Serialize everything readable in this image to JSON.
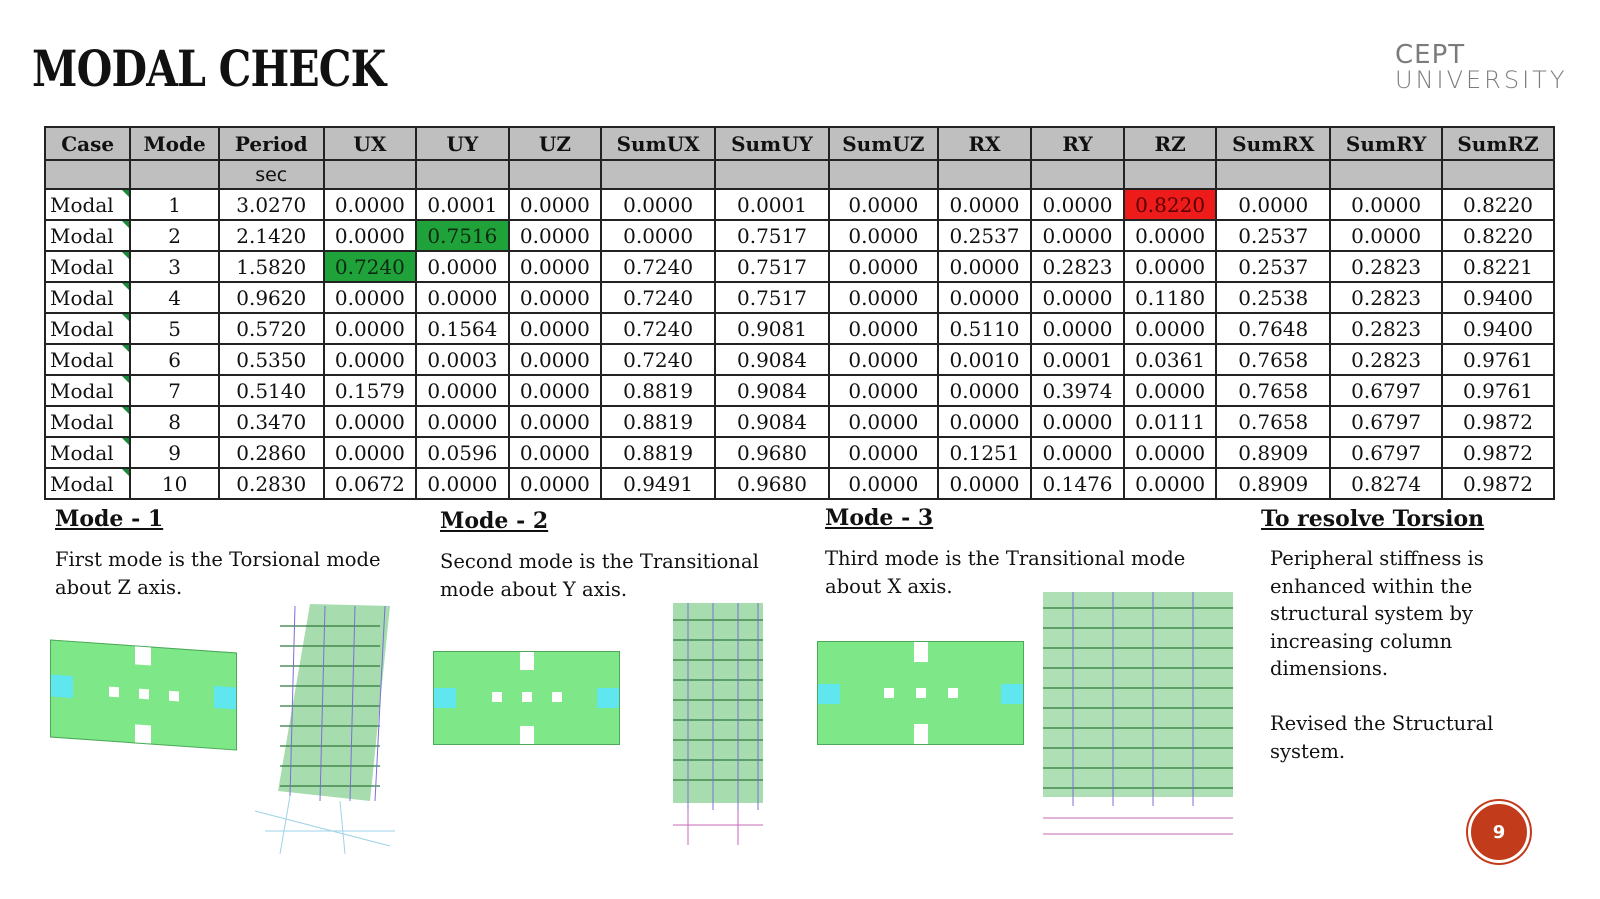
{
  "title": "MODAL CHECK",
  "logo": {
    "line1": "CEPT",
    "line2": "UNIVERSITY"
  },
  "table": {
    "headers": [
      "Case",
      "Mode",
      "Period",
      "UX",
      "UY",
      "UZ",
      "SumUX",
      "SumUY",
      "SumUZ",
      "RX",
      "RY",
      "RZ",
      "SumRX",
      "SumRY",
      "SumRZ"
    ],
    "units": [
      "",
      "",
      "sec",
      "",
      "",
      "",
      "",
      "",
      "",
      "",
      "",
      "",
      "",
      "",
      ""
    ],
    "rows": [
      [
        "Modal",
        "1",
        "3.0270",
        "0.0000",
        "0.0001",
        "0.0000",
        "0.0000",
        "0.0001",
        "0.0000",
        "0.0000",
        "0.0000",
        "0.8220",
        "0.0000",
        "0.0000",
        "0.8220"
      ],
      [
        "Modal",
        "2",
        "2.1420",
        "0.0000",
        "0.7516",
        "0.0000",
        "0.0000",
        "0.7517",
        "0.0000",
        "0.2537",
        "0.0000",
        "0.0000",
        "0.2537",
        "0.0000",
        "0.8220"
      ],
      [
        "Modal",
        "3",
        "1.5820",
        "0.7240",
        "0.0000",
        "0.0000",
        "0.7240",
        "0.7517",
        "0.0000",
        "0.0000",
        "0.2823",
        "0.0000",
        "0.2537",
        "0.2823",
        "0.8221"
      ],
      [
        "Modal",
        "4",
        "0.9620",
        "0.0000",
        "0.0000",
        "0.0000",
        "0.7240",
        "0.7517",
        "0.0000",
        "0.0000",
        "0.0000",
        "0.1180",
        "0.2538",
        "0.2823",
        "0.9400"
      ],
      [
        "Modal",
        "5",
        "0.5720",
        "0.0000",
        "0.1564",
        "0.0000",
        "0.7240",
        "0.9081",
        "0.0000",
        "0.5110",
        "0.0000",
        "0.0000",
        "0.7648",
        "0.2823",
        "0.9400"
      ],
      [
        "Modal",
        "6",
        "0.5350",
        "0.0000",
        "0.0003",
        "0.0000",
        "0.7240",
        "0.9084",
        "0.0000",
        "0.0010",
        "0.0001",
        "0.0361",
        "0.7658",
        "0.2823",
        "0.9761"
      ],
      [
        "Modal",
        "7",
        "0.5140",
        "0.1579",
        "0.0000",
        "0.0000",
        "0.8819",
        "0.9084",
        "0.0000",
        "0.0000",
        "0.3974",
        "0.0000",
        "0.7658",
        "0.6797",
        "0.9761"
      ],
      [
        "Modal",
        "8",
        "0.3470",
        "0.0000",
        "0.0000",
        "0.0000",
        "0.8819",
        "0.9084",
        "0.0000",
        "0.0000",
        "0.0000",
        "0.0111",
        "0.7658",
        "0.6797",
        "0.9872"
      ],
      [
        "Modal",
        "9",
        "0.2860",
        "0.0000",
        "0.0596",
        "0.0000",
        "0.8819",
        "0.9680",
        "0.0000",
        "0.1251",
        "0.0000",
        "0.0000",
        "0.8909",
        "0.6797",
        "0.9872"
      ],
      [
        "Modal",
        "10",
        "0.2830",
        "0.0672",
        "0.0000",
        "0.0000",
        "0.9491",
        "0.9680",
        "0.0000",
        "0.0000",
        "0.1476",
        "0.0000",
        "0.8909",
        "0.8274",
        "0.9872"
      ]
    ],
    "highlights": [
      {
        "row": 0,
        "col": 11,
        "color": "red"
      },
      {
        "row": 1,
        "col": 4,
        "color": "green"
      },
      {
        "row": 2,
        "col": 3,
        "color": "green"
      }
    ]
  },
  "modes": [
    {
      "heading": "Mode - 1",
      "line1": "First mode is the Torsional mode",
      "line2": "about Z axis."
    },
    {
      "heading": "Mode - 2",
      "line1": "Second mode is the Transitional",
      "line2": "mode about Y axis."
    },
    {
      "heading": "Mode - 3",
      "line1": "Third mode is the Transitional mode",
      "line2": "about X axis."
    }
  ],
  "resolve": {
    "heading": "To resolve Torsion",
    "para1_lines": [
      "Peripheral stiffness is",
      "enhanced within the",
      "structural system by",
      "increasing column",
      "dimensions."
    ],
    "para2_lines": [
      "Revised the Structural",
      "system."
    ]
  },
  "page_number": "9",
  "colors": {
    "highlight_green": "#1fa23a",
    "highlight_red": "#ee1b1b",
    "plan_green": "#7ee787",
    "plan_cyan": "#5fe6ef",
    "badge": "#c23b1a"
  }
}
